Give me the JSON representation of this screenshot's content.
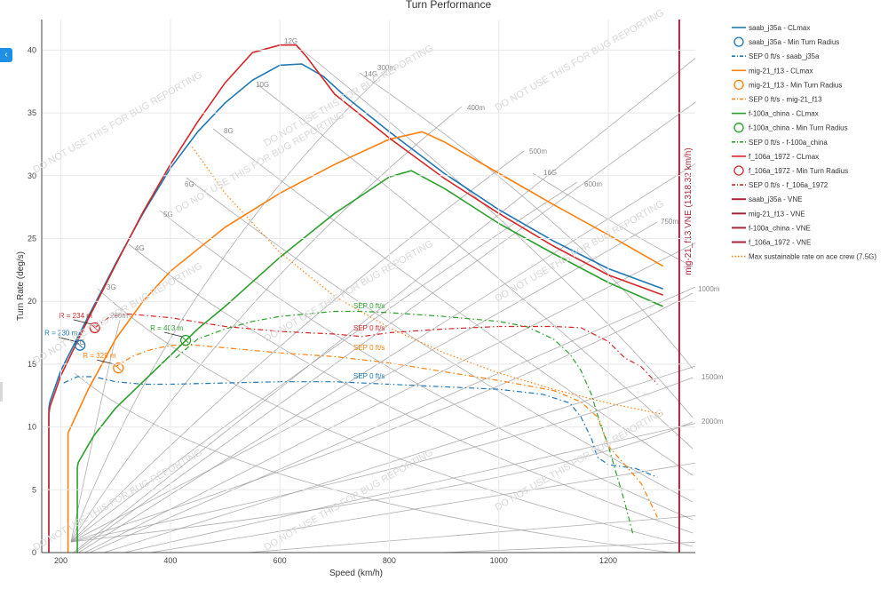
{
  "chart_data": {
    "type": "line",
    "title": "Turn Performance",
    "xlabel": "Speed (km/h)",
    "ylabel": "Turn Rate (deg/s)",
    "xlim": [
      165,
      1315
    ],
    "ylim": [
      0,
      42.5
    ],
    "x_ticks": [
      200,
      400,
      600,
      800,
      1000,
      1200
    ],
    "y_ticks": [
      0,
      5,
      10,
      15,
      20,
      25,
      30,
      35,
      40
    ],
    "grid": true,
    "legend_position": "right",
    "watermark": "DO NOT USE THIS FOR BUG REPORTING",
    "colors": {
      "saab_j35a": "#1f77b4",
      "mig21_f13": "#ff7f0e",
      "f100a_china": "#2ca02c",
      "f106a_1972": "#d62728",
      "vne": "#a8263b",
      "ace_crew": "#ff7f0e",
      "grid_lines": "#9a9a9a"
    },
    "g_load_labels": [
      "2G",
      "3G",
      "4G",
      "5G",
      "6G",
      "8G",
      "10G",
      "12G",
      "14G",
      "16G"
    ],
    "radius_labels": [
      "200m",
      "300m",
      "400m",
      "500m",
      "600m",
      "750m",
      "1000m",
      "1500m",
      "2000m"
    ],
    "series": [
      {
        "name": "saab_j35a - CLmax",
        "color_key": "saab_j35a",
        "style": "solid",
        "x": [
          178,
          180,
          200,
          250,
          300,
          350,
          400,
          450,
          500,
          550,
          600,
          640,
          680,
          720,
          800,
          900,
          1000,
          1100,
          1200,
          1300
        ],
        "y": [
          11.5,
          12.0,
          14.5,
          18.8,
          23.0,
          27.0,
          30.6,
          33.5,
          35.8,
          37.6,
          38.8,
          38.9,
          37.9,
          36.3,
          33.5,
          30.2,
          27.3,
          24.8,
          22.6,
          21.0
        ]
      },
      {
        "name": "saab_j35a - Min Turn Radius",
        "color_key": "saab_j35a",
        "style": "marker",
        "x": [
          235
        ],
        "y": [
          16.5
        ],
        "label": "R = 230 m"
      },
      {
        "name": "SEP 0 ft/s - saab_j35a",
        "color_key": "saab_j35a",
        "style": "dashdot",
        "x": [
          205,
          230,
          260,
          300,
          350,
          400,
          500,
          600,
          700,
          800,
          900,
          1000,
          1080,
          1130,
          1150,
          1170,
          1180,
          1200,
          1250,
          1290
        ],
        "y": [
          13.5,
          14.0,
          14.0,
          13.6,
          13.4,
          13.4,
          13.5,
          13.6,
          13.6,
          13.4,
          13.2,
          13.0,
          12.6,
          11.9,
          10.8,
          9.0,
          7.6,
          7.0,
          6.7,
          6.0
        ]
      },
      {
        "name": "mig-21_f13 - CLmax",
        "color_key": "mig21_f13",
        "style": "solid",
        "x": [
          213,
          215,
          250,
          300,
          350,
          400,
          500,
          600,
          700,
          800,
          860,
          900,
          1000,
          1100,
          1200,
          1300
        ],
        "y": [
          9.5,
          9.7,
          13.0,
          17.0,
          20.0,
          22.4,
          25.9,
          28.6,
          30.9,
          32.9,
          33.5,
          32.7,
          30.2,
          27.7,
          25.3,
          22.8
        ]
      },
      {
        "name": "mig-21_f13 - Min Turn Radius",
        "color_key": "mig21_f13",
        "style": "marker",
        "x": [
          305
        ],
        "y": [
          14.7
        ],
        "label": "R = 329 m"
      },
      {
        "name": "SEP 0 ft/s - mig-21_f13",
        "color_key": "mig21_f13",
        "style": "dashdot",
        "x": [
          300,
          330,
          360,
          400,
          450,
          500,
          600,
          700,
          800,
          900,
          1000,
          1100,
          1150,
          1180,
          1200,
          1230,
          1260,
          1290
        ],
        "y": [
          14.8,
          15.6,
          16.1,
          16.5,
          16.5,
          16.3,
          15.9,
          15.6,
          15.1,
          14.4,
          13.7,
          12.9,
          12.0,
          10.8,
          8.5,
          7.0,
          5.5,
          2.8
        ]
      },
      {
        "name": "f-100a_china - CLmax",
        "color_key": "f100a_china",
        "style": "solid",
        "x": [
          230,
          232,
          260,
          300,
          350,
          400,
          450,
          500,
          600,
          700,
          800,
          840,
          900,
          1000,
          1100,
          1200,
          1300
        ],
        "y": [
          6.8,
          7.2,
          9.3,
          11.5,
          13.6,
          15.7,
          17.8,
          19.6,
          23.5,
          27.0,
          29.9,
          30.4,
          29.0,
          26.2,
          23.8,
          21.5,
          19.6
        ]
      },
      {
        "name": "f-100a_china - Min Turn Radius",
        "color_key": "f100a_china",
        "style": "marker",
        "x": [
          428
        ],
        "y": [
          16.9
        ],
        "label": "R = 403 m"
      },
      {
        "name": "SEP 0 ft/s - f-100a_china",
        "color_key": "f100a_china",
        "style": "dashdot",
        "x": [
          410,
          450,
          500,
          550,
          600,
          650,
          700,
          750,
          800,
          900,
          1000,
          1050,
          1100,
          1130,
          1150,
          1170,
          1180,
          1200,
          1230,
          1245
        ],
        "y": [
          15.5,
          17.0,
          17.8,
          18.4,
          18.8,
          19.0,
          19.2,
          19.2,
          19.1,
          18.8,
          18.4,
          18.0,
          17.0,
          15.8,
          14.5,
          12.5,
          11.0,
          8.5,
          4.0,
          1.5
        ]
      },
      {
        "name": "f_106a_1972 - CLmax",
        "color_key": "f106a_1972",
        "style": "solid",
        "x": [
          178,
          180,
          200,
          250,
          300,
          350,
          400,
          450,
          500,
          550,
          600,
          630,
          650,
          700,
          800,
          900,
          1000,
          1100,
          1200,
          1300
        ],
        "y": [
          11.0,
          11.6,
          14.1,
          18.6,
          22.9,
          27.1,
          30.9,
          34.3,
          37.4,
          39.8,
          40.4,
          40.4,
          39.4,
          36.5,
          33.0,
          29.8,
          27.0,
          24.4,
          22.1,
          20.5
        ]
      },
      {
        "name": "f_106a_1972 - Min Turn Radius",
        "color_key": "f106a_1972",
        "style": "marker",
        "x": [
          262
        ],
        "y": [
          17.9
        ],
        "label": "R = 234 m"
      },
      {
        "name": "SEP 0 ft/s - f_106a_1972",
        "color_key": "f106a_1972",
        "style": "dashdot",
        "x": [
          262,
          290,
          320,
          350,
          400,
          500,
          600,
          700,
          750,
          800,
          900,
          1000,
          1100,
          1150,
          1200,
          1230,
          1260,
          1290
        ],
        "y": [
          17.9,
          18.8,
          19.0,
          18.9,
          18.7,
          18.0,
          17.6,
          17.4,
          17.2,
          17.5,
          17.8,
          18.0,
          18.0,
          17.9,
          16.8,
          15.5,
          14.8,
          13.4
        ]
      },
      {
        "name": "saab_j35a - VNE",
        "color_key": "vne",
        "style": "vne",
        "x": [
          1318.32,
          1318.32
        ],
        "y": [
          0,
          42.5
        ]
      },
      {
        "name": "mig-21_f13 - VNE",
        "color_key": "vne",
        "style": "vne",
        "x": [
          1318.32,
          1318.32
        ],
        "y": [
          0,
          42.5
        ]
      },
      {
        "name": "f-100a_china - VNE",
        "color_key": "vne",
        "style": "vne",
        "x": [
          1318.32,
          1318.32
        ],
        "y": [
          0,
          42.5
        ]
      },
      {
        "name": "f_106a_1972 - VNE",
        "color_key": "vne",
        "style": "vne",
        "x": [
          1318.32,
          1318.32
        ],
        "y": [
          0,
          42.5
        ]
      },
      {
        "name": "Max sustainable rate on ace crew (7.5G)",
        "color_key": "ace_crew",
        "style": "dotted",
        "x": [
          440,
          500,
          600,
          700,
          800,
          900,
          1000,
          1100,
          1200,
          1300
        ],
        "y": [
          32.3,
          28.6,
          23.9,
          20.4,
          17.9,
          15.9,
          14.3,
          13.0,
          11.9,
          11.0
        ]
      }
    ],
    "annotations": {
      "vne_label": "mig-21_f13 VNE (1318.32 km/h)",
      "sep_labels": [
        "SEP 0 ft/s",
        "SEP 0 ft/s",
        "SEP 0 ft/s",
        "SEP 0 ft/s"
      ]
    }
  }
}
